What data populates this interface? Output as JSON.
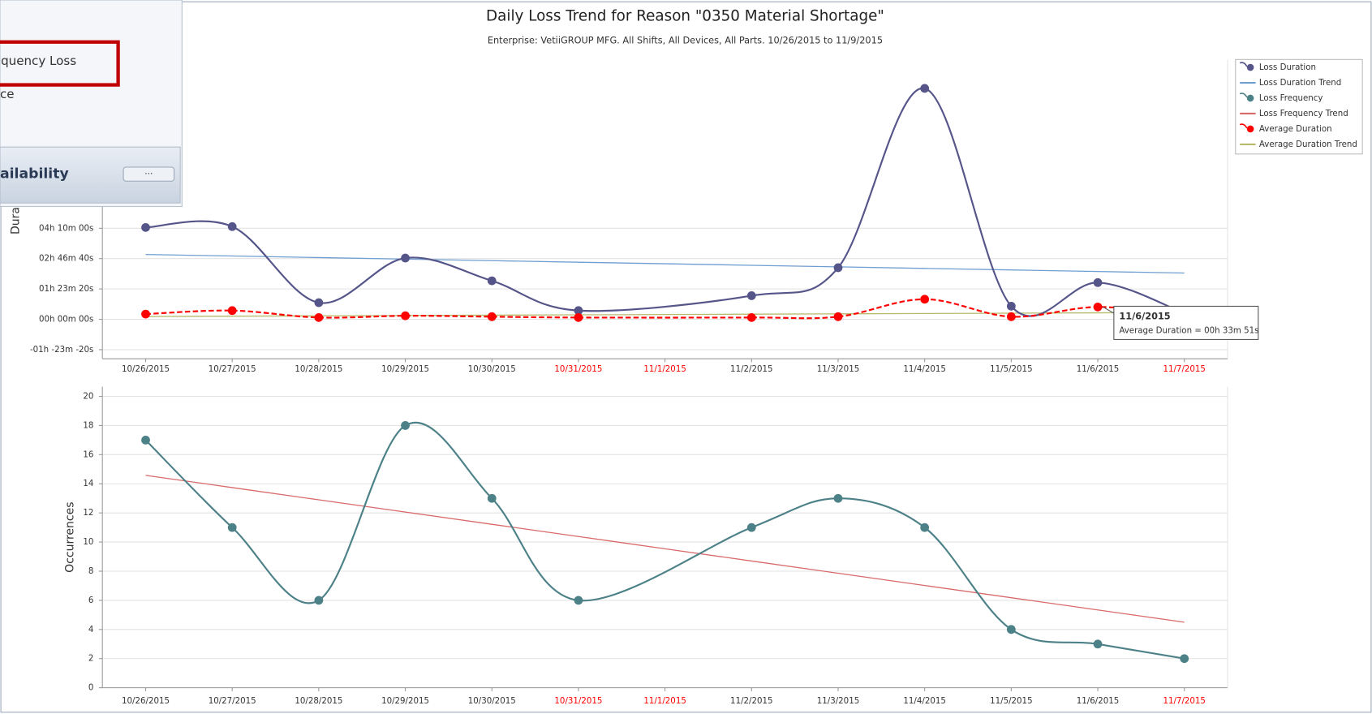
{
  "menu": {
    "items": [
      "quency Loss",
      "ce"
    ],
    "section": "ailability",
    "button": "···"
  },
  "chart_data": [
    {
      "type": "line",
      "title": "Daily Loss Trend for Reason \"0350 Material Shortage\"",
      "subtitle": "Enterprise: VetiiGROUP MFG. All Shifts, All Devices, All Parts. 10/26/2015 to 11/9/2015",
      "ylabel": "Duration",
      "categories": [
        "10/26/2015",
        "10/27/2015",
        "10/28/2015",
        "10/29/2015",
        "10/30/2015",
        "10/31/2015",
        "11/1/2015",
        "11/2/2015",
        "11/3/2015",
        "11/4/2015",
        "11/5/2015",
        "11/6/2015",
        "11/7/2015"
      ],
      "category_colors": [
        "#333333",
        "#333333",
        "#333333",
        "#333333",
        "#333333",
        "#ff0000",
        "#ff0000",
        "#333333",
        "#333333",
        "#333333",
        "#333333",
        "#333333",
        "#ff0000"
      ],
      "ylim": [
        -6500,
        42800
      ],
      "yticks": [
        {
          "value": -5000,
          "label": "-01h -23m -20s"
        },
        {
          "value": 0,
          "label": "00h 00m 00s"
        },
        {
          "value": 5000,
          "label": "01h 23m 20s"
        },
        {
          "value": 10000,
          "label": "02h 46m 40s"
        },
        {
          "value": 15000,
          "label": "04h 10m 00s"
        }
      ],
      "grid": true,
      "smooth": true,
      "connect_gaps": true,
      "legend": "top-right",
      "series": [
        {
          "name": "Loss Duration",
          "color": "#55558a",
          "markers": true,
          "values": [
            15130,
            15275,
            2740,
            10090,
            6340,
            1440,
            null,
            3890,
            8500,
            38040,
            2160,
            6050,
            1000
          ]
        },
        {
          "name": "Loss Duration Trend",
          "color": "#6f9ed1",
          "trend": true,
          "values": [
            10680,
            10425,
            10170,
            9915,
            9660,
            9405,
            9150,
            8895,
            8640,
            8385,
            8130,
            7875,
            7620
          ]
        },
        {
          "name": "Average Duration",
          "color": "#ff0000",
          "markers": true,
          "dashed": true,
          "values": [
            860,
            1440,
            290,
            580,
            430,
            290,
            null,
            290,
            430,
            3310,
            430,
            2031,
            600
          ]
        },
        {
          "name": "Average Duration Trend",
          "color": "#b7b96b",
          "trend": true,
          "values": [
            460,
            515,
            570,
            625,
            680,
            735,
            790,
            845,
            900,
            955,
            1010,
            1065,
            1120
          ]
        }
      ],
      "tooltip": {
        "title": "11/6/2015",
        "text": "Average Duration = 00h 33m 51s"
      }
    },
    {
      "type": "line",
      "ylabel": "Occurrences",
      "categories": [
        "10/26/2015",
        "10/27/2015",
        "10/28/2015",
        "10/29/2015",
        "10/30/2015",
        "10/31/2015",
        "11/1/2015",
        "11/2/2015",
        "11/3/2015",
        "11/4/2015",
        "11/5/2015",
        "11/6/2015",
        "11/7/2015"
      ],
      "category_colors": [
        "#333333",
        "#333333",
        "#333333",
        "#333333",
        "#333333",
        "#ff0000",
        "#ff0000",
        "#333333",
        "#333333",
        "#333333",
        "#333333",
        "#333333",
        "#ff0000"
      ],
      "ylim": [
        0,
        20.66
      ],
      "yticks": [
        0,
        2,
        4,
        6,
        8,
        10,
        12,
        14,
        16,
        18,
        20
      ],
      "grid": true,
      "smooth": true,
      "connect_gaps": true,
      "series": [
        {
          "name": "Loss Frequency",
          "color": "#4d8188",
          "markers": true,
          "values": [
            17,
            11,
            6,
            18,
            13,
            6,
            null,
            11,
            13,
            11,
            4,
            3,
            2
          ]
        },
        {
          "name": "Loss Frequency Trend",
          "color": "#d96a6a",
          "trend": true,
          "values": [
            14.58,
            13.74,
            12.9,
            12.06,
            11.22,
            10.38,
            9.54,
            8.7,
            7.86,
            7.02,
            6.18,
            5.34,
            4.5
          ]
        }
      ]
    }
  ]
}
